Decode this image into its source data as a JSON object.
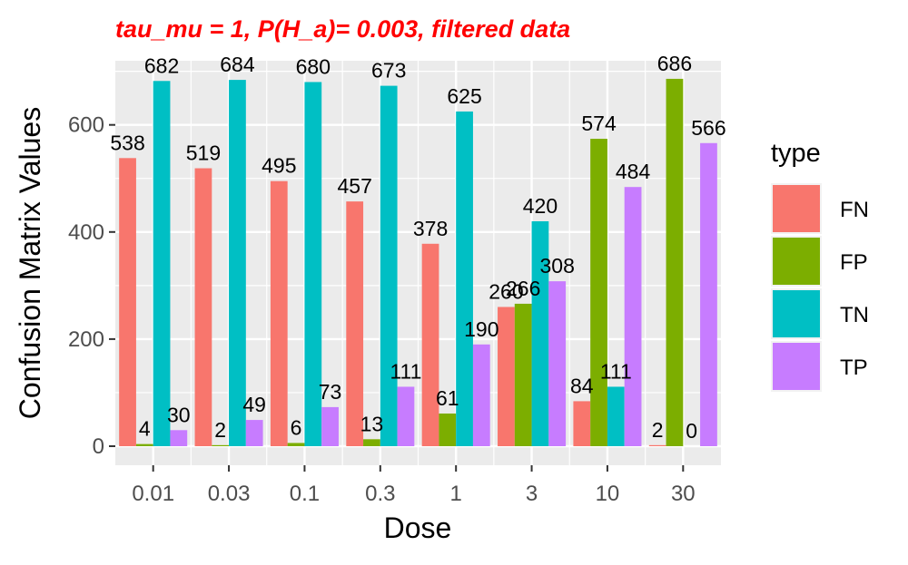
{
  "chart_data": {
    "type": "bar",
    "title": "tau_mu = 1, P(H_a)= 0.003, filtered data",
    "xlabel": "Dose",
    "ylabel": "Confusion Matrix Values",
    "categories": [
      "0.01",
      "0.03",
      "0.1",
      "0.3",
      "1",
      "3",
      "10",
      "30"
    ],
    "y_ticks": [
      0,
      200,
      400,
      600
    ],
    "ylim": [
      0,
      705
    ],
    "grid": true,
    "legend": {
      "title": "type",
      "placement": "right",
      "entries": [
        "FN",
        "FP",
        "TN",
        "TP"
      ]
    },
    "series": [
      {
        "name": "FN",
        "color": "#F8766D",
        "values": [
          538,
          519,
          495,
          457,
          378,
          260,
          84,
          2
        ]
      },
      {
        "name": "FP",
        "color": "#7CAE00",
        "values": [
          4,
          2,
          6,
          13,
          61,
          266,
          574,
          686
        ]
      },
      {
        "name": "TN",
        "color": "#00BFC4",
        "values": [
          682,
          684,
          680,
          673,
          625,
          420,
          111,
          0
        ]
      },
      {
        "name": "TP",
        "color": "#C77CFF",
        "values": [
          30,
          49,
          73,
          111,
          190,
          308,
          484,
          566
        ]
      }
    ],
    "title_color": "#FF0000",
    "panel_background": "#EBEBEB",
    "gridline_color": "#FFFFFF"
  }
}
